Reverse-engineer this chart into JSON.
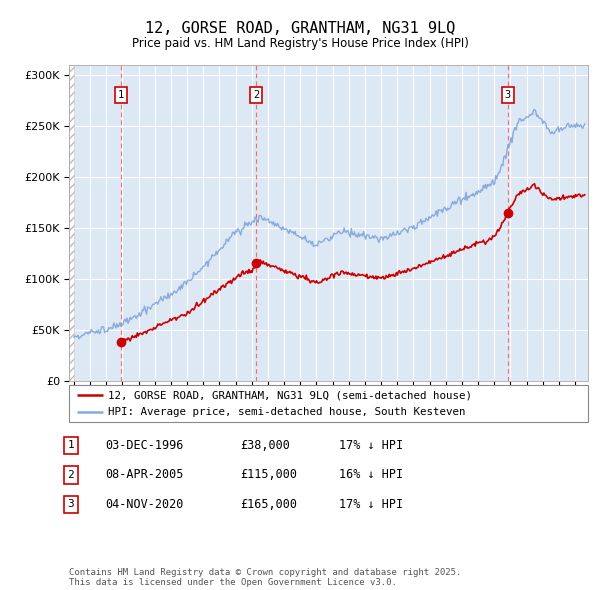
{
  "title": "12, GORSE ROAD, GRANTHAM, NG31 9LQ",
  "subtitle": "Price paid vs. HM Land Registry's House Price Index (HPI)",
  "sale_dates_decimal": [
    1996.917,
    2005.271,
    2020.838
  ],
  "sale_prices": [
    38000,
    115000,
    165000
  ],
  "sale_labels": [
    "1",
    "2",
    "3"
  ],
  "table_rows": [
    {
      "num": "1",
      "date": "03-DEC-1996",
      "price": "£38,000",
      "hpi": "17% ↓ HPI"
    },
    {
      "num": "2",
      "date": "08-APR-2005",
      "price": "£115,000",
      "hpi": "16% ↓ HPI"
    },
    {
      "num": "3",
      "date": "04-NOV-2020",
      "price": "£165,000",
      "hpi": "17% ↓ HPI"
    }
  ],
  "legend_line1": "12, GORSE ROAD, GRANTHAM, NG31 9LQ (semi-detached house)",
  "legend_line2": "HPI: Average price, semi-detached house, South Kesteven",
  "footer": "Contains HM Land Registry data © Crown copyright and database right 2025.\nThis data is licensed under the Open Government Licence v3.0.",
  "price_color": "#cc0000",
  "hpi_color": "#88aadd",
  "ylim": [
    0,
    310000
  ],
  "yticks": [
    0,
    50000,
    100000,
    150000,
    200000,
    250000,
    300000
  ],
  "xmin": 1993.7,
  "xmax": 2025.8,
  "hatch_end": 1994.0,
  "background_color": "#ffffff",
  "plot_bg_color": "#dde8f5",
  "hatch_color": "#bbbbbb"
}
